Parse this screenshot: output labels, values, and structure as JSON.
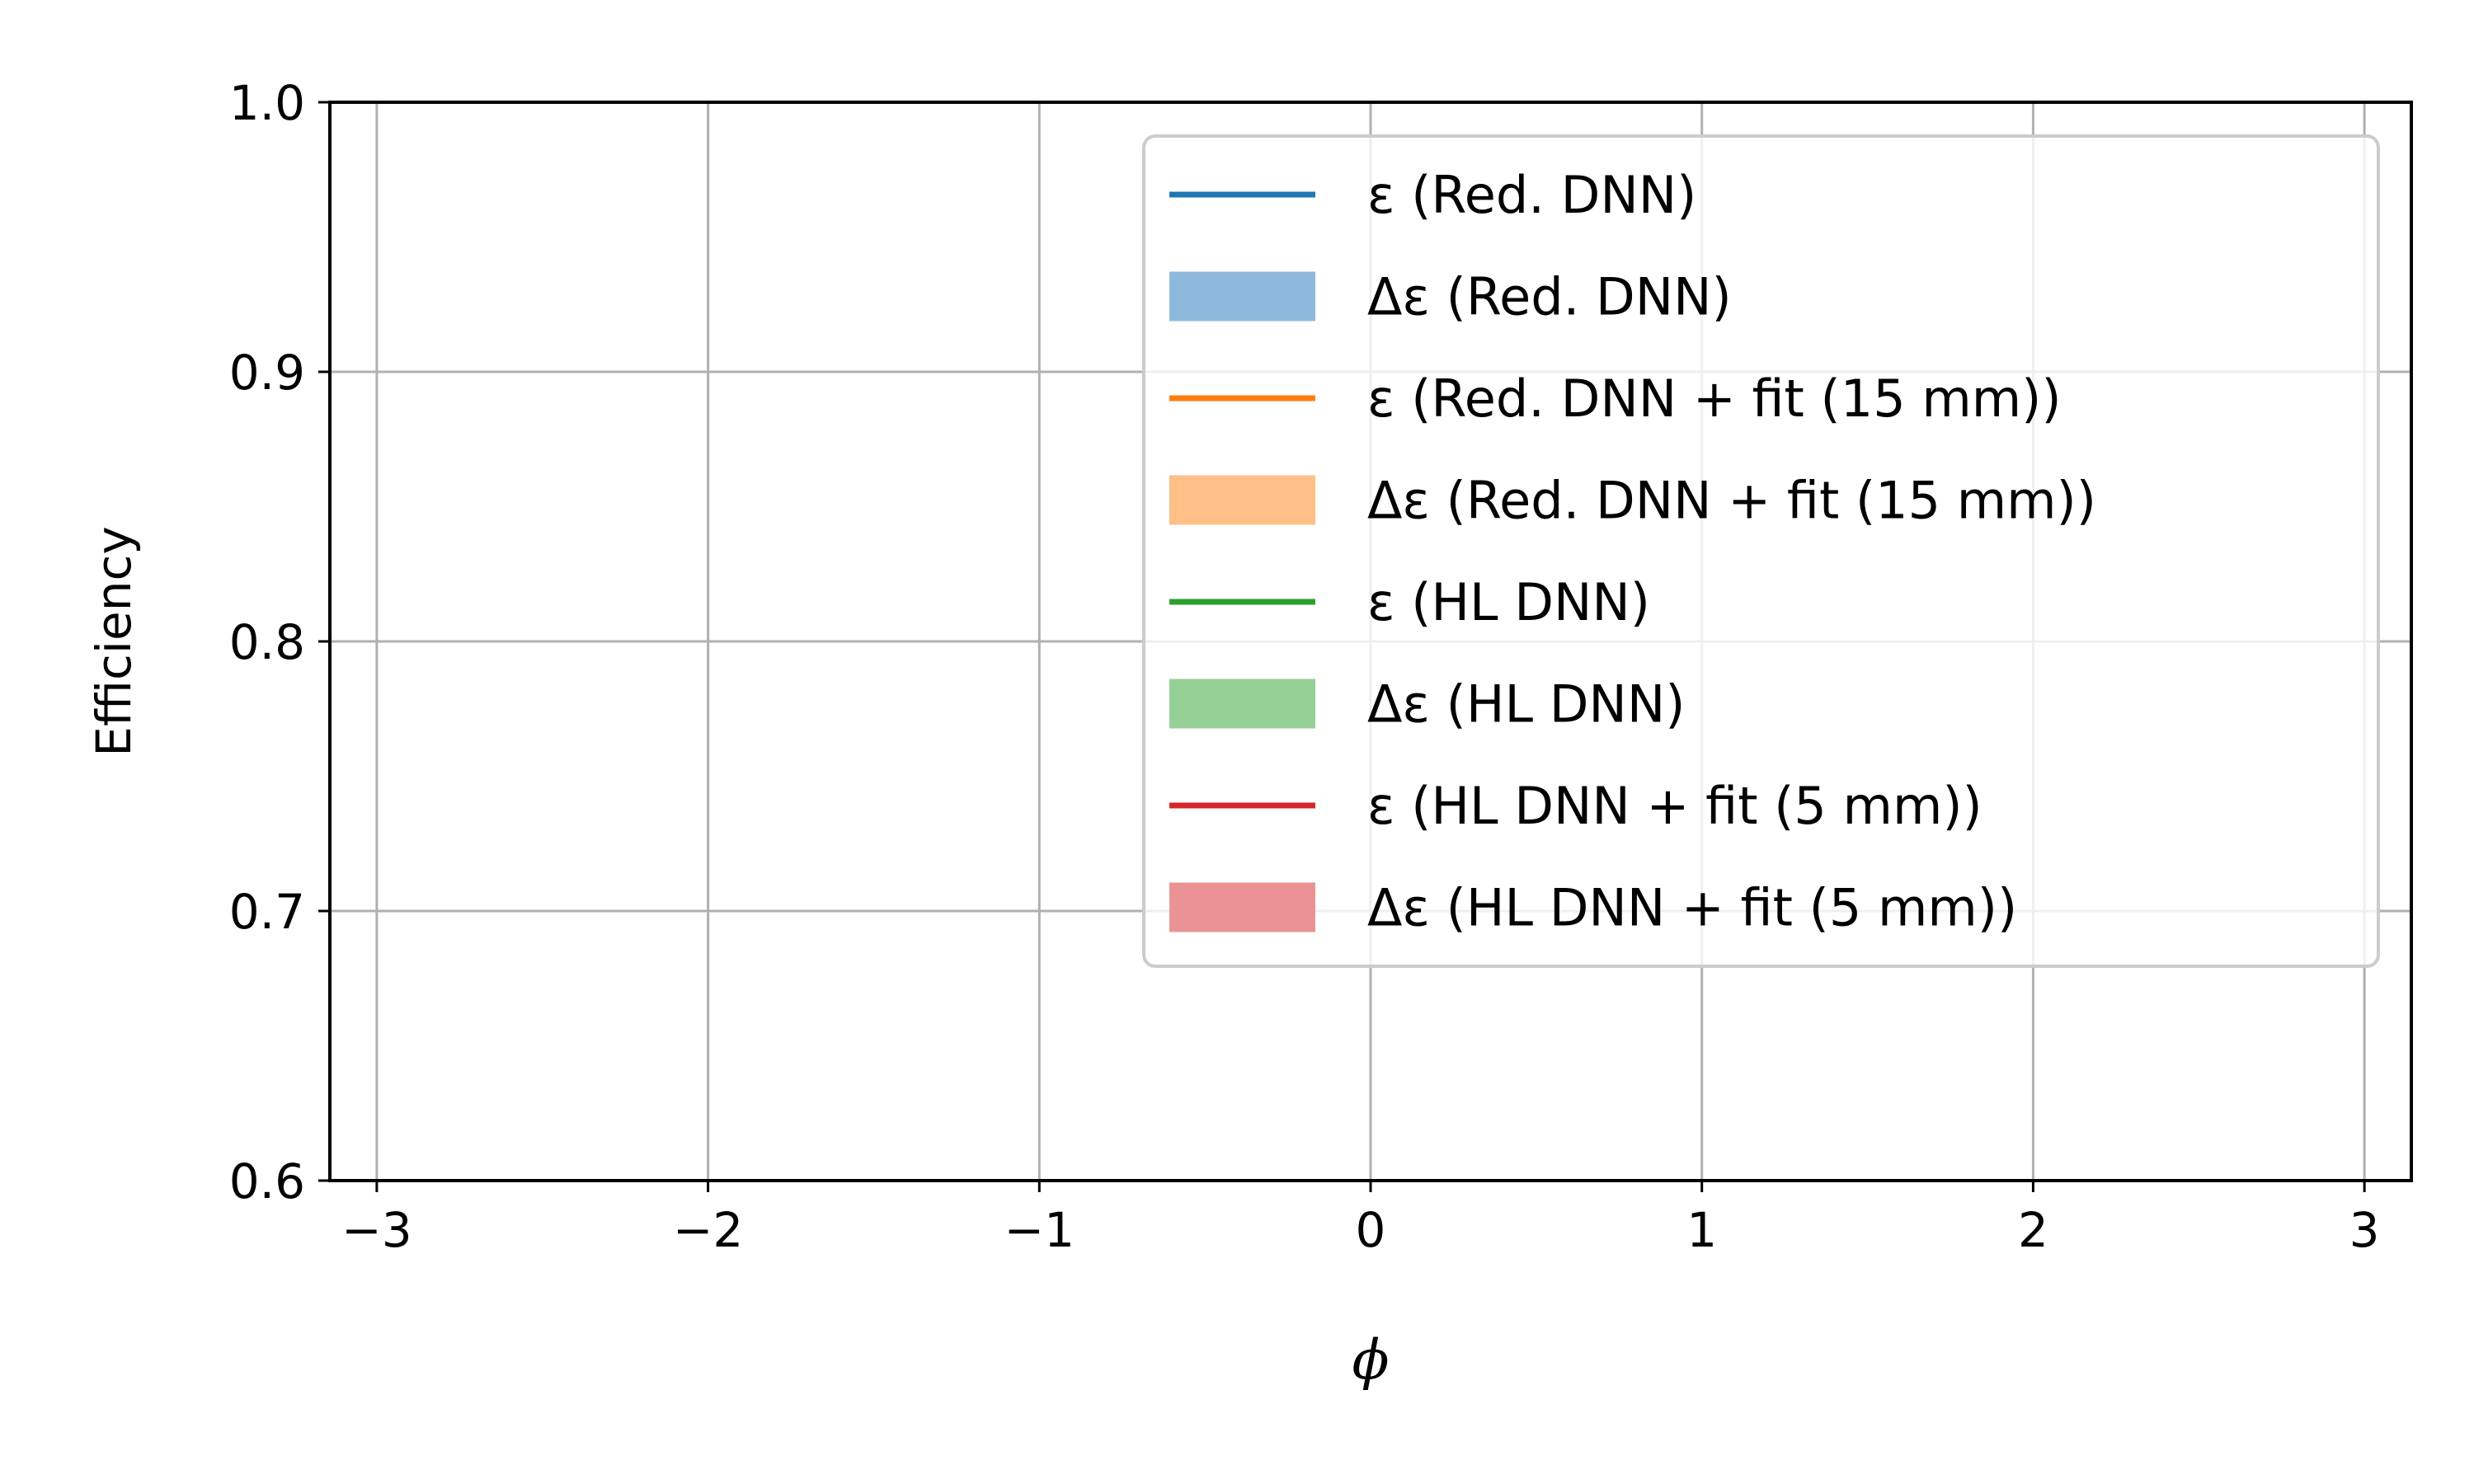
{
  "chart_data": {
    "type": "line",
    "xlabel": "ϕ",
    "ylabel": "Efficiency",
    "xlim": [
      -3.14159,
      3.14159
    ],
    "ylim": [
      0.6,
      1.0
    ],
    "x_ticks": [
      -3,
      -2,
      -1,
      0,
      1,
      2,
      3
    ],
    "x_tick_labels": [
      "−3",
      "−2",
      "−1",
      "0",
      "1",
      "2",
      "3"
    ],
    "y_ticks": [
      0.6,
      0.7,
      0.8,
      0.9,
      1.0
    ],
    "y_tick_labels": [
      "0.6",
      "0.7",
      "0.8",
      "0.9",
      "1.0"
    ],
    "grid": true,
    "legend_position": "upper-right",
    "legend": [
      {
        "type": "line",
        "label": "ε (Red. DNN)",
        "color": "#1f77b4"
      },
      {
        "type": "band",
        "label": "Δε (Red. DNN)",
        "color": "#8fb9dc"
      },
      {
        "type": "line",
        "label": "ε (Red. DNN + fit (15 mm))",
        "color": "#ff7f0e"
      },
      {
        "type": "band",
        "label": "Δε (Red. DNN + fit (15 mm))",
        "color": "#ffbf87"
      },
      {
        "type": "line",
        "label": "ε (HL DNN)",
        "color": "#2ca02c"
      },
      {
        "type": "band",
        "label": "Δε (HL DNN)",
        "color": "#96cf96"
      },
      {
        "type": "line",
        "label": "ε (HL DNN + fit (5 mm))",
        "color": "#d62728"
      },
      {
        "type": "band",
        "label": "Δε (HL DNN + fit (5 mm))",
        "color": "#eb9394"
      }
    ],
    "series": []
  }
}
